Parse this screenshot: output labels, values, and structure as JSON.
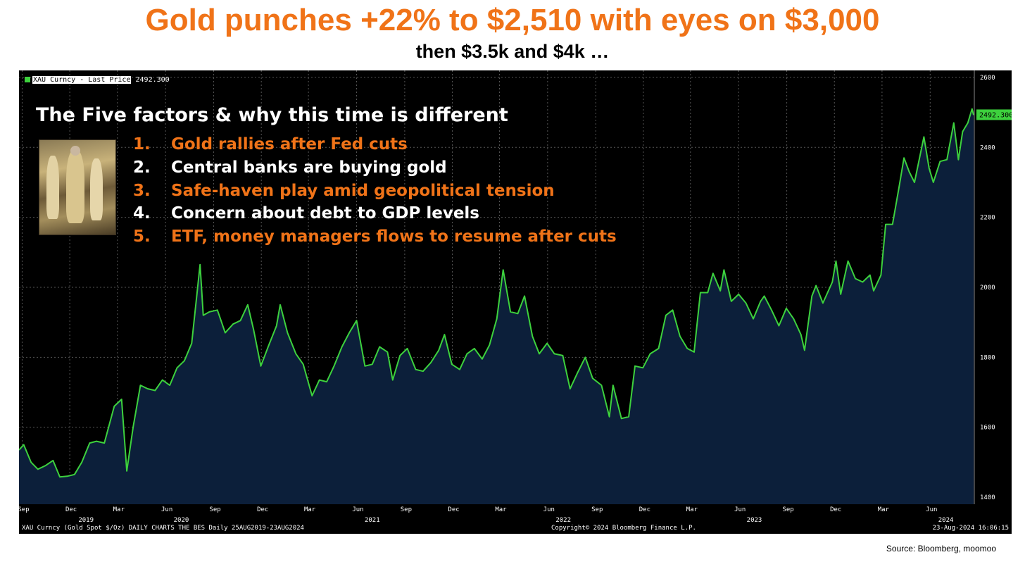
{
  "title": "Gold punches +22% to $2,510 with eyes on $3,000",
  "subtitle": "then $3.5k and $4k …",
  "source": "Source: Bloomberg, moomoo",
  "overlay": {
    "heading": "The Five factors & why this time is different",
    "factors": [
      {
        "num": "1.",
        "text": "Gold rallies after Fed cuts",
        "color": "#f07318"
      },
      {
        "num": "2.",
        "text": "Central banks are buying gold",
        "color": "#ffffff"
      },
      {
        "num": "3.",
        "text": "Safe-haven play amid geopolitical tension",
        "color": "#f07318"
      },
      {
        "num": "4.",
        "text": "Concern about debt to GDP levels",
        "color": "#ffffff"
      },
      {
        "num": "5.",
        "text": "ETF, money managers flows to resume after cuts",
        "color": "#f07318"
      }
    ]
  },
  "legend": {
    "label": "XAU Curncy - Last Price",
    "value": "2492.300"
  },
  "footer": {
    "left": "XAU Curncy (Gold Spot  $/Oz) DAILY CHARTS THE BES  Daily 25AUG2019-23AUG2024",
    "center": "Copyright© 2024 Bloomberg Finance L.P.",
    "right": "23-Aug-2024 16:06:15"
  },
  "colors": {
    "line": "#3dd13d",
    "area": "#0c1f3a",
    "background": "#000000",
    "accent": "#f07318"
  },
  "chart_data": {
    "type": "area",
    "series": [
      {
        "name": "XAU Curncy - Last Price"
      }
    ],
    "ylim": [
      1380,
      2620
    ],
    "yticks": [
      1400,
      1600,
      1800,
      2000,
      2200,
      2400,
      2600
    ],
    "last_value_label": "2492.300",
    "month_ticks": [
      {
        "date": "2019-09",
        "label": "Sep"
      },
      {
        "date": "2019-12",
        "label": "Dec"
      },
      {
        "date": "2020-03",
        "label": "Mar"
      },
      {
        "date": "2020-06",
        "label": "Jun"
      },
      {
        "date": "2020-09",
        "label": "Sep"
      },
      {
        "date": "2020-12",
        "label": "Dec"
      },
      {
        "date": "2021-03",
        "label": "Mar"
      },
      {
        "date": "2021-06",
        "label": "Jun"
      },
      {
        "date": "2021-09",
        "label": "Sep"
      },
      {
        "date": "2021-12",
        "label": "Dec"
      },
      {
        "date": "2022-03",
        "label": "Mar"
      },
      {
        "date": "2022-06",
        "label": "Jun"
      },
      {
        "date": "2022-09",
        "label": "Sep"
      },
      {
        "date": "2022-12",
        "label": "Dec"
      },
      {
        "date": "2023-03",
        "label": "Mar"
      },
      {
        "date": "2023-06",
        "label": "Jun"
      },
      {
        "date": "2023-09",
        "label": "Sep"
      },
      {
        "date": "2023-12",
        "label": "Dec"
      },
      {
        "date": "2024-03",
        "label": "Mar"
      },
      {
        "date": "2024-06",
        "label": "Jun"
      }
    ],
    "year_labels": [
      {
        "date": "2020-01",
        "label": "2019"
      },
      {
        "date": "2020-07",
        "label": "2020"
      },
      {
        "date": "2021-07",
        "label": "2021"
      },
      {
        "date": "2022-07",
        "label": "2022"
      },
      {
        "date": "2023-07",
        "label": "2023"
      },
      {
        "date": "2024-07",
        "label": "2024"
      }
    ],
    "points": [
      [
        "2019-08-26",
        1535
      ],
      [
        "2019-09-04",
        1550
      ],
      [
        "2019-09-18",
        1500
      ],
      [
        "2019-10-01",
        1480
      ],
      [
        "2019-10-15",
        1490
      ],
      [
        "2019-10-30",
        1505
      ],
      [
        "2019-11-12",
        1458
      ],
      [
        "2019-11-26",
        1460
      ],
      [
        "2019-12-10",
        1465
      ],
      [
        "2019-12-24",
        1500
      ],
      [
        "2020-01-08",
        1555
      ],
      [
        "2020-01-21",
        1560
      ],
      [
        "2020-02-05",
        1555
      ],
      [
        "2020-02-24",
        1660
      ],
      [
        "2020-03-09",
        1680
      ],
      [
        "2020-03-19",
        1475
      ],
      [
        "2020-03-31",
        1600
      ],
      [
        "2020-04-14",
        1720
      ],
      [
        "2020-04-28",
        1710
      ],
      [
        "2020-05-12",
        1705
      ],
      [
        "2020-05-26",
        1735
      ],
      [
        "2020-06-09",
        1720
      ],
      [
        "2020-06-23",
        1770
      ],
      [
        "2020-07-07",
        1790
      ],
      [
        "2020-07-21",
        1840
      ],
      [
        "2020-08-06",
        2065
      ],
      [
        "2020-08-12",
        1920
      ],
      [
        "2020-08-24",
        1930
      ],
      [
        "2020-09-08",
        1935
      ],
      [
        "2020-09-23",
        1870
      ],
      [
        "2020-10-08",
        1895
      ],
      [
        "2020-10-22",
        1905
      ],
      [
        "2020-11-05",
        1950
      ],
      [
        "2020-11-16",
        1880
      ],
      [
        "2020-11-30",
        1775
      ],
      [
        "2020-12-14",
        1830
      ],
      [
        "2020-12-30",
        1890
      ],
      [
        "2021-01-06",
        1950
      ],
      [
        "2021-01-20",
        1870
      ],
      [
        "2021-02-05",
        1810
      ],
      [
        "2021-02-19",
        1780
      ],
      [
        "2021-03-08",
        1690
      ],
      [
        "2021-03-22",
        1735
      ],
      [
        "2021-04-05",
        1730
      ],
      [
        "2021-04-19",
        1775
      ],
      [
        "2021-05-04",
        1830
      ],
      [
        "2021-05-18",
        1870
      ],
      [
        "2021-06-01",
        1905
      ],
      [
        "2021-06-17",
        1775
      ],
      [
        "2021-07-01",
        1780
      ],
      [
        "2021-07-15",
        1830
      ],
      [
        "2021-07-30",
        1815
      ],
      [
        "2021-08-09",
        1735
      ],
      [
        "2021-08-23",
        1805
      ],
      [
        "2021-09-06",
        1825
      ],
      [
        "2021-09-22",
        1765
      ],
      [
        "2021-10-06",
        1760
      ],
      [
        "2021-10-21",
        1785
      ],
      [
        "2021-11-05",
        1820
      ],
      [
        "2021-11-16",
        1865
      ],
      [
        "2021-11-30",
        1780
      ],
      [
        "2021-12-15",
        1765
      ],
      [
        "2021-12-29",
        1810
      ],
      [
        "2022-01-12",
        1825
      ],
      [
        "2022-01-27",
        1795
      ],
      [
        "2022-02-10",
        1835
      ],
      [
        "2022-02-24",
        1910
      ],
      [
        "2022-03-08",
        2050
      ],
      [
        "2022-03-22",
        1930
      ],
      [
        "2022-04-05",
        1925
      ],
      [
        "2022-04-18",
        1975
      ],
      [
        "2022-05-03",
        1860
      ],
      [
        "2022-05-16",
        1810
      ],
      [
        "2022-05-31",
        1840
      ],
      [
        "2022-06-14",
        1810
      ],
      [
        "2022-06-30",
        1805
      ],
      [
        "2022-07-14",
        1710
      ],
      [
        "2022-07-28",
        1755
      ],
      [
        "2022-08-12",
        1800
      ],
      [
        "2022-08-26",
        1740
      ],
      [
        "2022-09-12",
        1720
      ],
      [
        "2022-09-27",
        1630
      ],
      [
        "2022-10-04",
        1720
      ],
      [
        "2022-10-20",
        1625
      ],
      [
        "2022-11-03",
        1630
      ],
      [
        "2022-11-15",
        1775
      ],
      [
        "2022-11-30",
        1770
      ],
      [
        "2022-12-14",
        1810
      ],
      [
        "2022-12-30",
        1825
      ],
      [
        "2023-01-13",
        1920
      ],
      [
        "2023-01-26",
        1935
      ],
      [
        "2023-02-09",
        1860
      ],
      [
        "2023-02-23",
        1825
      ],
      [
        "2023-03-08",
        1815
      ],
      [
        "2023-03-20",
        1985
      ],
      [
        "2023-04-03",
        1985
      ],
      [
        "2023-04-13",
        2040
      ],
      [
        "2023-04-27",
        1990
      ],
      [
        "2023-05-04",
        2050
      ],
      [
        "2023-05-18",
        1960
      ],
      [
        "2023-06-01",
        1980
      ],
      [
        "2023-06-15",
        1955
      ],
      [
        "2023-06-29",
        1910
      ],
      [
        "2023-07-13",
        1960
      ],
      [
        "2023-07-20",
        1975
      ],
      [
        "2023-08-03",
        1935
      ],
      [
        "2023-08-17",
        1890
      ],
      [
        "2023-08-31",
        1940
      ],
      [
        "2023-09-14",
        1910
      ],
      [
        "2023-09-28",
        1865
      ],
      [
        "2023-10-05",
        1820
      ],
      [
        "2023-10-19",
        1975
      ],
      [
        "2023-10-27",
        2005
      ],
      [
        "2023-11-09",
        1955
      ],
      [
        "2023-11-27",
        2015
      ],
      [
        "2023-12-04",
        2075
      ],
      [
        "2023-12-13",
        1980
      ],
      [
        "2023-12-27",
        2075
      ],
      [
        "2024-01-10",
        2025
      ],
      [
        "2024-01-24",
        2015
      ],
      [
        "2024-02-07",
        2035
      ],
      [
        "2024-02-14",
        1990
      ],
      [
        "2024-02-28",
        2035
      ],
      [
        "2024-03-08",
        2180
      ],
      [
        "2024-03-21",
        2180
      ],
      [
        "2024-04-03",
        2290
      ],
      [
        "2024-04-12",
        2370
      ],
      [
        "2024-04-22",
        2330
      ],
      [
        "2024-05-02",
        2300
      ],
      [
        "2024-05-20",
        2430
      ],
      [
        "2024-05-30",
        2340
      ],
      [
        "2024-06-07",
        2300
      ],
      [
        "2024-06-20",
        2360
      ],
      [
        "2024-07-03",
        2365
      ],
      [
        "2024-07-16",
        2470
      ],
      [
        "2024-07-25",
        2365
      ],
      [
        "2024-08-02",
        2445
      ],
      [
        "2024-08-12",
        2470
      ],
      [
        "2024-08-20",
        2510
      ],
      [
        "2024-08-23",
        2492.3
      ]
    ]
  }
}
